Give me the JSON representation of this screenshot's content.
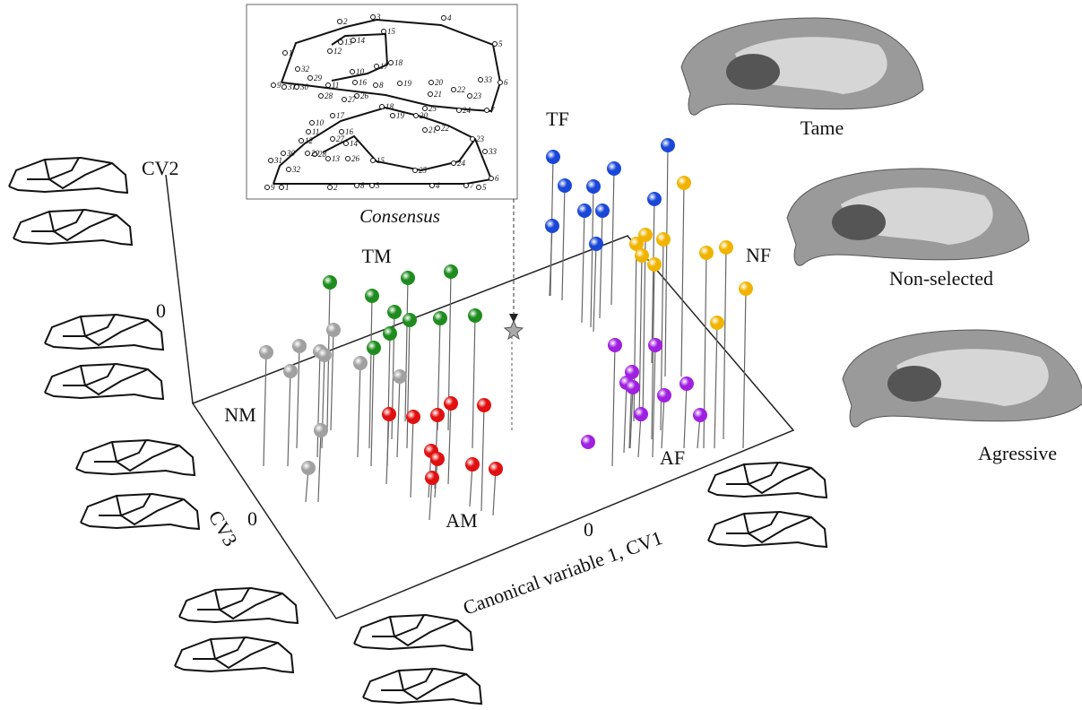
{
  "inset": {
    "title": "Consensus",
    "upper_labels": [
      "1",
      "2",
      "3",
      "4",
      "5",
      "6",
      "7",
      "8",
      "9",
      "10",
      "11",
      "12",
      "13",
      "14",
      "15",
      "16",
      "17",
      "18",
      "19",
      "20",
      "21",
      "22",
      "23",
      "24",
      "25",
      "26",
      "27",
      "28",
      "29",
      "30",
      "31",
      "32",
      "33"
    ],
    "lower_labels": [
      "9",
      "1",
      "2",
      "8",
      "3",
      "4",
      "7",
      "5",
      "6",
      "17",
      "18",
      "19",
      "20",
      "21",
      "22",
      "23",
      "33",
      "24",
      "25",
      "15",
      "26",
      "13",
      "14",
      "28",
      "27",
      "16",
      "10",
      "11",
      "12",
      "29",
      "30",
      "31",
      "32"
    ]
  },
  "axes": {
    "cv2": "CV2",
    "cv3": "CV3",
    "cv1": "Canonical variable 1, CV1",
    "zero_cv2": "0",
    "zero_cv3": "0",
    "zero_cv1": "0"
  },
  "groups": [
    {
      "label": "TF",
      "color": "#1a47d8"
    },
    {
      "label": "NF",
      "color": "#f0b400"
    },
    {
      "label": "TM",
      "color": "#1e8c1e"
    },
    {
      "label": "NM",
      "color": "#a0a0a0"
    },
    {
      "label": "AM",
      "color": "#e01010"
    },
    {
      "label": "AF",
      "color": "#a020e0"
    }
  ],
  "skulls": [
    "Tame",
    "Non-selected",
    "Agressive"
  ]
}
